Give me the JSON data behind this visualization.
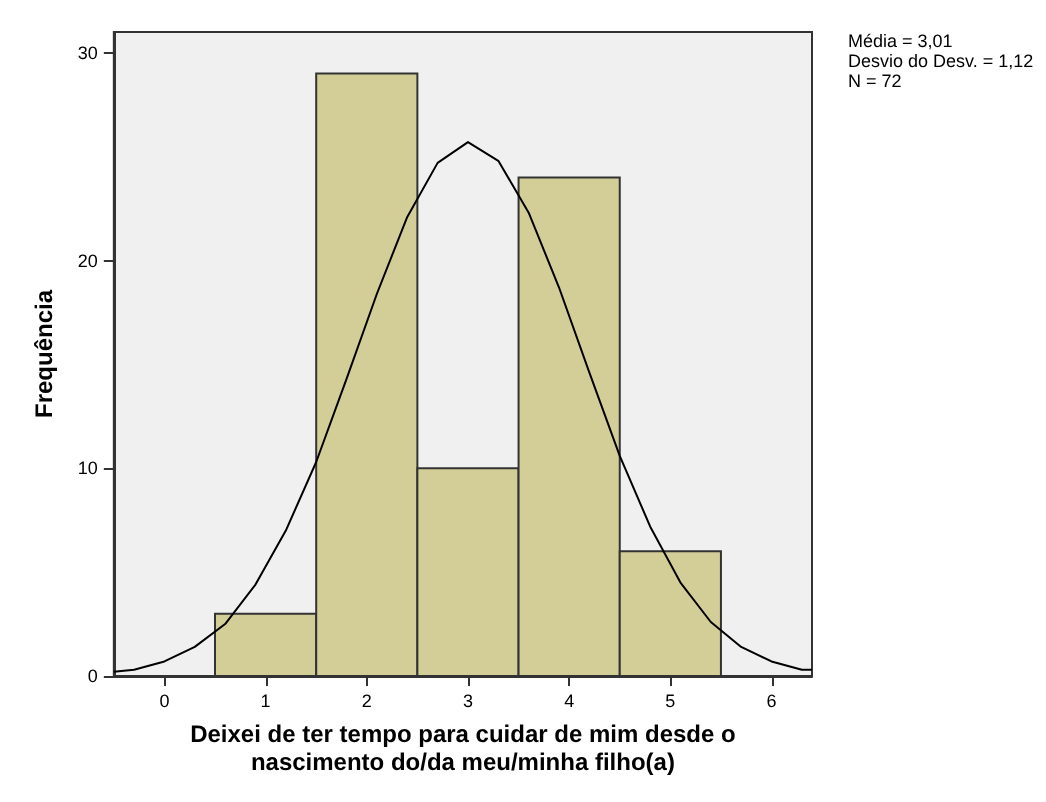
{
  "chart_data": {
    "type": "histogram",
    "xlabel": "Deixei de ter tempo para cuidar de mim desde o\nnascimento do/da meu/minha filho(a)",
    "ylabel": "Frequência",
    "bins": [
      0.5,
      1.5,
      2.5,
      3.5,
      4.5,
      5.5
    ],
    "values": [
      3,
      29,
      10,
      24,
      6
    ],
    "color": "#d3ce97",
    "series": [
      {
        "type": "line",
        "color": "#000000",
        "x": [
          -0.5,
          -0.3,
          0,
          0.3,
          0.6,
          0.9,
          1.2,
          1.5,
          1.8,
          2.1,
          2.4,
          2.7,
          3,
          3.3,
          3.6,
          3.9,
          4.2,
          4.5,
          4.8,
          5.1,
          5.4,
          5.7,
          6,
          6.3,
          6.4
        ],
        "values": [
          0.2,
          0.3,
          0.7,
          1.4,
          2.5,
          4.4,
          7,
          10.3,
          14.3,
          18.4,
          22.1,
          24.7,
          25.7,
          24.8,
          22.3,
          18.7,
          14.6,
          10.6,
          7.2,
          4.5,
          2.6,
          1.4,
          0.7,
          0.3,
          0.3
        ]
      }
    ],
    "xlim": [
      -0.5,
      6.4
    ],
    "xticks": [
      0,
      1,
      2,
      3,
      4,
      5,
      6
    ],
    "ylim": [
      0,
      31
    ],
    "yticks": [
      0,
      10,
      20,
      30
    ],
    "grid": false,
    "marker": "none",
    "annotations": [
      "Média = 3,01",
      "Desvio do Desv. = 1,12",
      "N = 72"
    ]
  }
}
